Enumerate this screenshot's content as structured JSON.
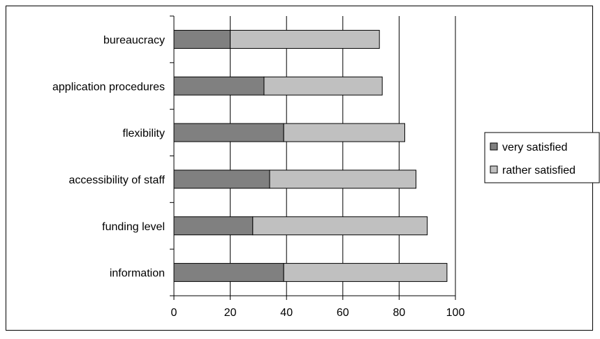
{
  "chart_data": {
    "type": "bar",
    "orientation": "horizontal",
    "stacked": true,
    "categories": [
      "bureaucracy",
      "application procedures",
      "flexibility",
      "accessibility of staff",
      "funding level",
      "information"
    ],
    "series": [
      {
        "name": "very satisfied",
        "values": [
          20,
          32,
          39,
          34,
          28,
          39
        ]
      },
      {
        "name": "rather satisfied",
        "values": [
          53,
          42,
          43,
          52,
          62,
          58
        ]
      }
    ],
    "xlim": [
      0,
      100
    ],
    "xticks": [
      0,
      20,
      40,
      60,
      80,
      100
    ],
    "title": "",
    "xlabel": "",
    "ylabel": "",
    "grid": "vertical",
    "legend_position": "right",
    "colors": {
      "very satisfied": "#808080",
      "rather satisfied": "#c0c0c0",
      "edge": "#000000"
    }
  }
}
